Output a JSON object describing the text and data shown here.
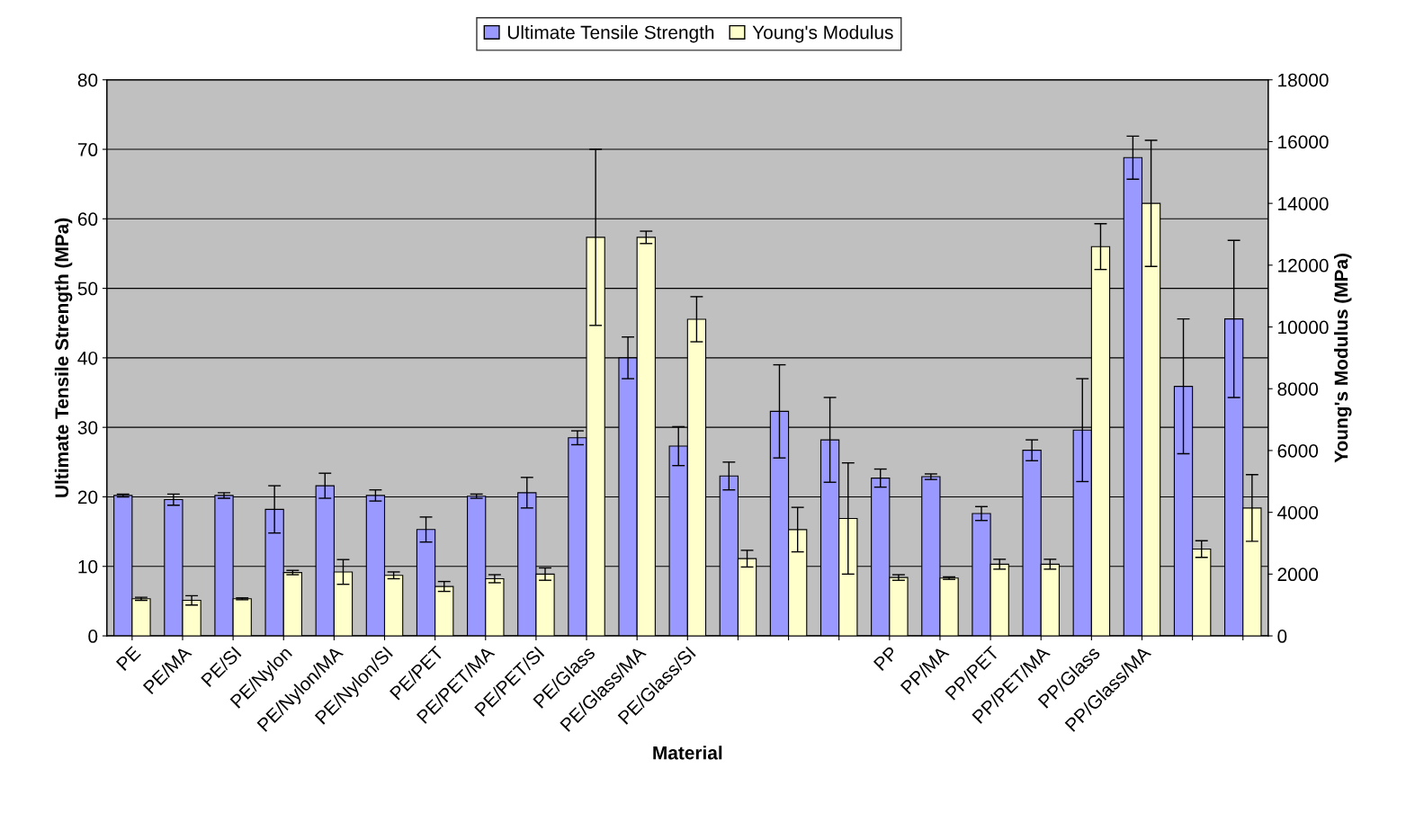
{
  "chart_data": {
    "type": "bar",
    "xlabel": "Material",
    "ylabel": "Ultimate Tensile Strength (MPa)",
    "y2label": "Young's Modulus (MPa)",
    "categories": [
      "PE",
      "PE/MA",
      "PE/SI",
      "PE/Nylon",
      "PE/Nylon/MA",
      "PE/Nylon/SI",
      "PE/PET",
      "PE/PET/MA",
      "PE/PET/SI",
      "PE/Glass",
      "PE/Glass/MA",
      "PE/Glass/SI",
      null,
      null,
      null,
      "PP",
      "PP/MA",
      "PP/PET",
      "PP/PET/MA",
      "PP/Glass",
      "PP/Glass/MA",
      null,
      null
    ],
    "series": [
      {
        "name": "Ultimate Tensile Strength",
        "color": "#9999ff",
        "values": [
          20.2,
          19.6,
          20.2,
          18.2,
          21.6,
          20.2,
          15.3,
          20.1,
          20.6,
          28.5,
          40.0,
          27.3,
          23.0,
          32.3,
          28.2,
          22.7,
          22.9,
          17.6,
          26.7,
          29.6,
          68.8,
          35.9,
          45.6
        ],
        "errors": [
          0.2,
          0.8,
          0.4,
          3.4,
          1.8,
          0.8,
          1.8,
          0.3,
          2.2,
          1.0,
          3.0,
          2.8,
          2.0,
          6.7,
          6.1,
          1.3,
          0.4,
          1.0,
          1.5,
          7.4,
          3.1,
          9.7,
          11.3
        ]
      },
      {
        "name": "Young's Modulus",
        "color": "#ffffcc",
        "axis": "y2",
        "values": [
          1200,
          1150,
          1200,
          2050,
          2070,
          1960,
          1600,
          1850,
          2000,
          12900,
          12900,
          10250,
          2500,
          3440,
          3800,
          1890,
          1870,
          2320,
          2320,
          12600,
          14000,
          2810,
          4140
        ],
        "errors": [
          50,
          150,
          30,
          70,
          400,
          110,
          160,
          130,
          200,
          2850,
          200,
          730,
          270,
          720,
          1800,
          90,
          40,
          160,
          160,
          740,
          2040,
          270,
          1080
        ]
      }
    ],
    "ylim": [
      0,
      80
    ],
    "yticks": [
      0,
      10,
      20,
      30,
      40,
      50,
      60,
      70,
      80
    ],
    "y2lim": [
      0,
      18000
    ],
    "y2ticks": [
      0,
      2000,
      4000,
      6000,
      8000,
      10000,
      12000,
      14000,
      16000,
      18000
    ],
    "grid": "y",
    "legend": "top"
  }
}
